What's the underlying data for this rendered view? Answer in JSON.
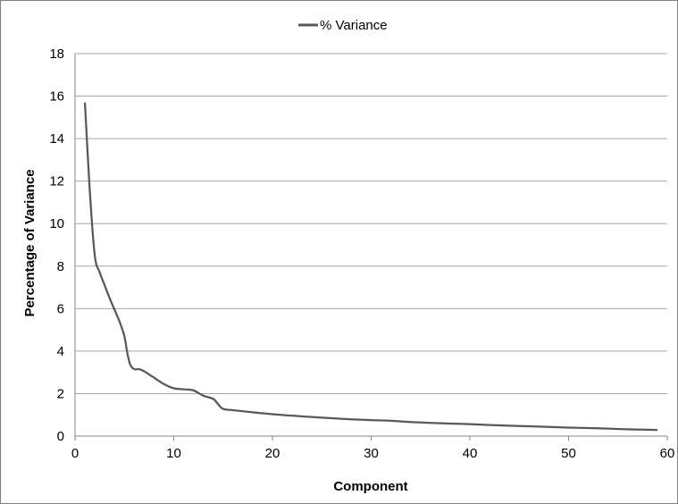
{
  "chart_data": {
    "type": "line",
    "title": "",
    "xlabel": "Component",
    "ylabel": "Percentage of Variance",
    "xlim": [
      0,
      60
    ],
    "ylim": [
      0,
      18
    ],
    "x_ticks": [
      0,
      10,
      20,
      30,
      40,
      50,
      60
    ],
    "y_ticks": [
      0,
      2,
      4,
      6,
      8,
      10,
      12,
      14,
      16,
      18
    ],
    "grid": "horizontal",
    "legend_position": "top-center",
    "series": [
      {
        "name": "% Variance",
        "color": "#595959",
        "x": [
          1,
          1.5,
          2,
          2.5,
          3,
          3.5,
          4,
          4.5,
          5,
          5.3,
          5.6,
          6,
          6.5,
          7,
          8,
          9,
          10,
          11,
          12,
          13,
          14,
          14.5,
          15,
          16,
          18,
          20,
          22,
          24,
          26,
          28,
          30,
          32,
          34,
          36,
          38,
          40,
          42,
          44,
          46,
          48,
          50,
          52,
          54,
          56,
          58,
          59
        ],
        "y": [
          15.7,
          11.5,
          8.5,
          7.7,
          7.1,
          6.5,
          5.95,
          5.4,
          4.7,
          3.9,
          3.35,
          3.15,
          3.15,
          3.05,
          2.75,
          2.45,
          2.25,
          2.2,
          2.15,
          1.9,
          1.75,
          1.5,
          1.28,
          1.22,
          1.12,
          1.03,
          0.96,
          0.9,
          0.84,
          0.79,
          0.75,
          0.72,
          0.66,
          0.62,
          0.59,
          0.56,
          0.52,
          0.49,
          0.46,
          0.43,
          0.4,
          0.38,
          0.35,
          0.32,
          0.3,
          0.29
        ]
      }
    ]
  }
}
